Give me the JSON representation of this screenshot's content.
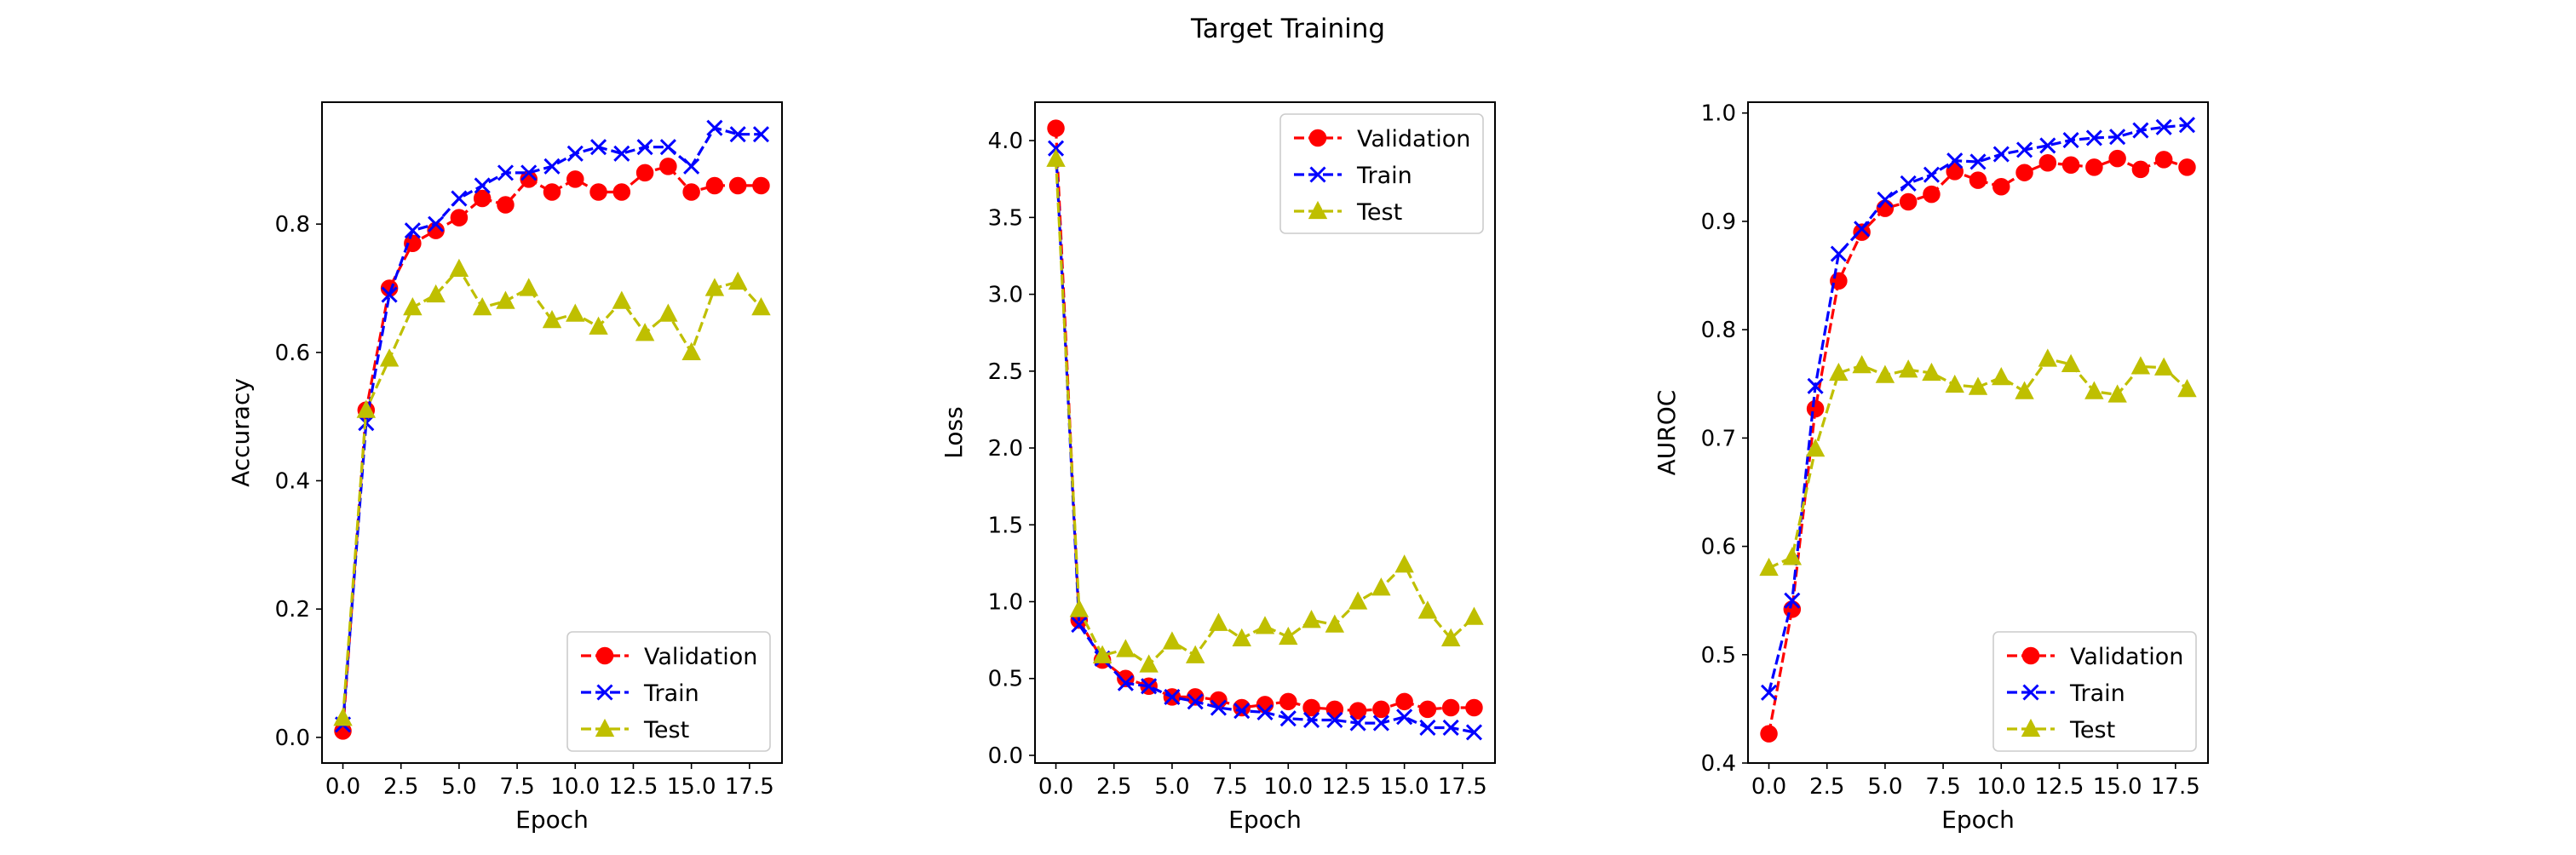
{
  "figure": {
    "title": "Target Training"
  },
  "chart_data": [
    {
      "type": "line",
      "title": "",
      "xlabel": "Epoch",
      "ylabel": "Accuracy",
      "xlim": [
        -0.9,
        18.9
      ],
      "ylim": [
        -0.04,
        0.99
      ],
      "xticks": [
        0.0,
        2.5,
        5.0,
        7.5,
        10.0,
        12.5,
        15.0,
        17.5
      ],
      "xtick_labels": [
        "0.0",
        "2.5",
        "5.0",
        "7.5",
        "10.0",
        "12.5",
        "15.0",
        "17.5"
      ],
      "yticks": [
        0.0,
        0.2,
        0.4,
        0.6,
        0.8
      ],
      "ytick_labels": [
        "0.0",
        "0.2",
        "0.4",
        "0.6",
        "0.8"
      ],
      "legend_position": "lower-right",
      "grid": false,
      "x": [
        0,
        1,
        2,
        3,
        4,
        5,
        6,
        7,
        8,
        9,
        10,
        11,
        12,
        13,
        14,
        15,
        16,
        17,
        18
      ],
      "series": [
        {
          "name": "Validation",
          "color": "#ff0000",
          "marker": "circle",
          "values": [
            0.01,
            0.51,
            0.7,
            0.77,
            0.79,
            0.81,
            0.84,
            0.83,
            0.87,
            0.85,
            0.87,
            0.85,
            0.85,
            0.88,
            0.89,
            0.85,
            0.86,
            0.86,
            0.86
          ]
        },
        {
          "name": "Train",
          "color": "#0000ff",
          "marker": "x",
          "values": [
            0.02,
            0.49,
            0.69,
            0.79,
            0.8,
            0.84,
            0.86,
            0.88,
            0.88,
            0.89,
            0.91,
            0.92,
            0.91,
            0.92,
            0.92,
            0.89,
            0.95,
            0.94,
            0.94
          ]
        },
        {
          "name": "Test",
          "color": "#bfbf00",
          "marker": "triangle",
          "values": [
            0.03,
            0.51,
            0.59,
            0.67,
            0.69,
            0.73,
            0.67,
            0.68,
            0.7,
            0.65,
            0.66,
            0.64,
            0.68,
            0.63,
            0.66,
            0.6,
            0.7,
            0.71,
            0.67
          ]
        }
      ]
    },
    {
      "type": "line",
      "title": "",
      "xlabel": "Epoch",
      "ylabel": "Loss",
      "xlim": [
        -0.9,
        18.9
      ],
      "ylim": [
        -0.05,
        4.25
      ],
      "xticks": [
        0.0,
        2.5,
        5.0,
        7.5,
        10.0,
        12.5,
        15.0,
        17.5
      ],
      "xtick_labels": [
        "0.0",
        "2.5",
        "5.0",
        "7.5",
        "10.0",
        "12.5",
        "15.0",
        "17.5"
      ],
      "yticks": [
        0.0,
        0.5,
        1.0,
        1.5,
        2.0,
        2.5,
        3.0,
        3.5,
        4.0
      ],
      "ytick_labels": [
        "0.0",
        "0.5",
        "1.0",
        "1.5",
        "2.0",
        "2.5",
        "3.0",
        "3.5",
        "4.0"
      ],
      "legend_position": "upper-right",
      "grid": false,
      "x": [
        0,
        1,
        2,
        3,
        4,
        5,
        6,
        7,
        8,
        9,
        10,
        11,
        12,
        13,
        14,
        15,
        16,
        17,
        18
      ],
      "series": [
        {
          "name": "Validation",
          "color": "#ff0000",
          "marker": "circle",
          "values": [
            4.08,
            0.88,
            0.62,
            0.5,
            0.45,
            0.38,
            0.38,
            0.36,
            0.31,
            0.33,
            0.35,
            0.31,
            0.3,
            0.29,
            0.3,
            0.35,
            0.3,
            0.31,
            0.31
          ]
        },
        {
          "name": "Train",
          "color": "#0000ff",
          "marker": "x",
          "values": [
            3.95,
            0.85,
            0.63,
            0.47,
            0.45,
            0.38,
            0.35,
            0.31,
            0.29,
            0.28,
            0.24,
            0.23,
            0.23,
            0.21,
            0.21,
            0.25,
            0.18,
            0.18,
            0.15
          ]
        },
        {
          "name": "Test",
          "color": "#bfbf00",
          "marker": "triangle",
          "values": [
            3.88,
            0.95,
            0.65,
            0.69,
            0.59,
            0.74,
            0.65,
            0.86,
            0.76,
            0.84,
            0.77,
            0.88,
            0.85,
            1.0,
            1.09,
            1.24,
            0.94,
            0.76,
            0.9
          ]
        }
      ]
    },
    {
      "type": "line",
      "title": "",
      "xlabel": "Epoch",
      "ylabel": "AUROC",
      "xlim": [
        -0.9,
        18.9
      ],
      "ylim": [
        0.4,
        1.01
      ],
      "xticks": [
        0.0,
        2.5,
        5.0,
        7.5,
        10.0,
        12.5,
        15.0,
        17.5
      ],
      "xtick_labels": [
        "0.0",
        "2.5",
        "5.0",
        "7.5",
        "10.0",
        "12.5",
        "15.0",
        "17.5"
      ],
      "yticks": [
        0.4,
        0.5,
        0.6,
        0.7,
        0.8,
        0.9,
        1.0
      ],
      "ytick_labels": [
        "0.4",
        "0.5",
        "0.6",
        "0.7",
        "0.8",
        "0.9",
        "1.0"
      ],
      "legend_position": "lower-right",
      "grid": false,
      "x": [
        0,
        1,
        2,
        3,
        4,
        5,
        6,
        7,
        8,
        9,
        10,
        11,
        12,
        13,
        14,
        15,
        16,
        17,
        18
      ],
      "series": [
        {
          "name": "Validation",
          "color": "#ff0000",
          "marker": "circle",
          "values": [
            0.427,
            0.542,
            0.727,
            0.845,
            0.89,
            0.912,
            0.918,
            0.925,
            0.946,
            0.938,
            0.932,
            0.945,
            0.954,
            0.952,
            0.95,
            0.958,
            0.948,
            0.957,
            0.95
          ]
        },
        {
          "name": "Train",
          "color": "#0000ff",
          "marker": "x",
          "values": [
            0.465,
            0.55,
            0.748,
            0.87,
            0.893,
            0.92,
            0.935,
            0.943,
            0.956,
            0.955,
            0.962,
            0.966,
            0.97,
            0.975,
            0.977,
            0.978,
            0.984,
            0.987,
            0.989
          ]
        },
        {
          "name": "Test",
          "color": "#bfbf00",
          "marker": "triangle",
          "values": [
            0.58,
            0.59,
            0.69,
            0.76,
            0.767,
            0.758,
            0.763,
            0.76,
            0.749,
            0.747,
            0.756,
            0.743,
            0.773,
            0.768,
            0.743,
            0.74,
            0.766,
            0.765,
            0.745
          ]
        }
      ]
    }
  ]
}
